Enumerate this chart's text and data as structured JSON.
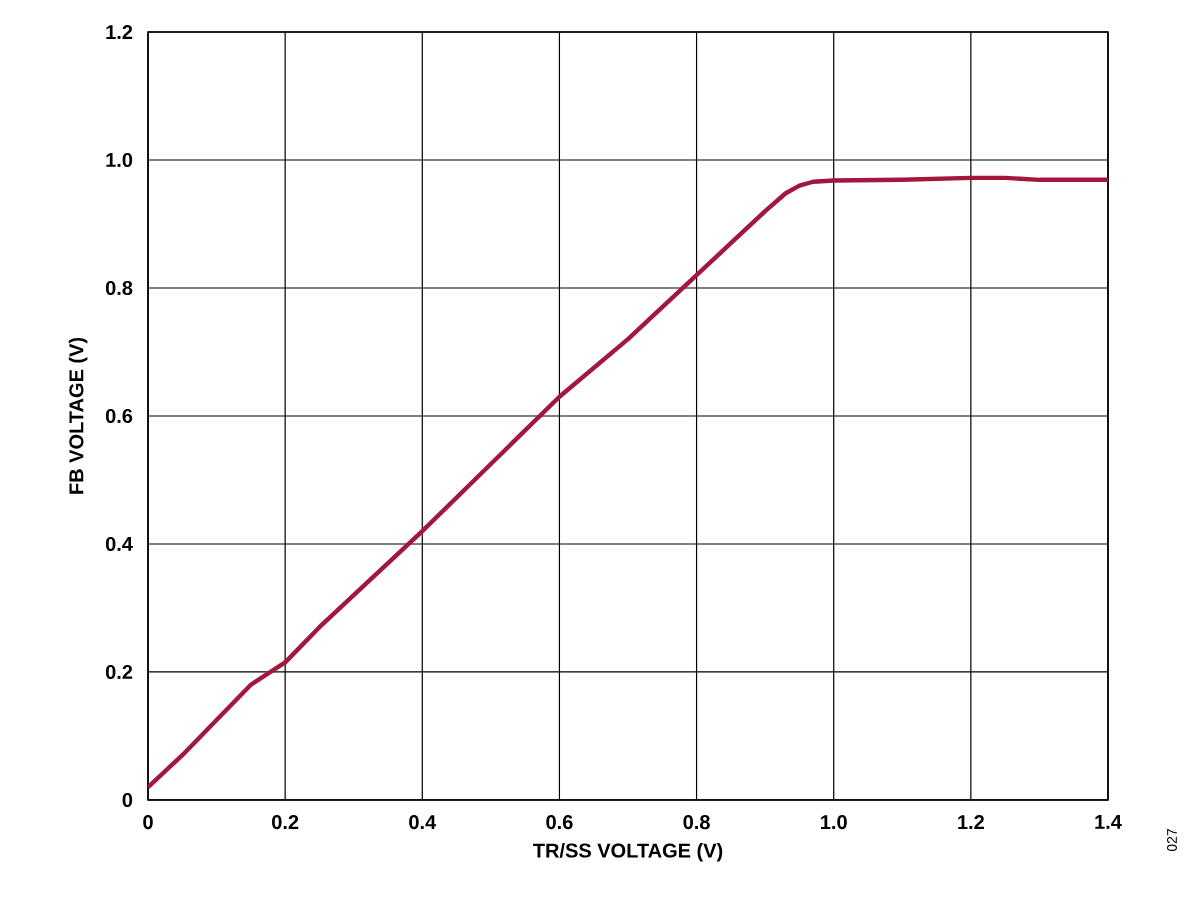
{
  "chart_data": {
    "type": "line",
    "xlabel": "TR/SS VOLTAGE (V)",
    "ylabel": "FB VOLTAGE (V)",
    "x": [
      0,
      0.05,
      0.1,
      0.15,
      0.2,
      0.25,
      0.3,
      0.4,
      0.5,
      0.6,
      0.7,
      0.8,
      0.85,
      0.9,
      0.93,
      0.95,
      0.97,
      1.0,
      1.1,
      1.2,
      1.25,
      1.3,
      1.4
    ],
    "series": [
      {
        "color": "#a3173f",
        "values": [
          0.02,
          0.07,
          0.125,
          0.18,
          0.215,
          0.27,
          0.32,
          0.42,
          0.525,
          0.63,
          0.72,
          0.82,
          0.87,
          0.92,
          0.948,
          0.96,
          0.966,
          0.968,
          0.969,
          0.972,
          0.972,
          0.969,
          0.969
        ]
      }
    ],
    "xlim": [
      0,
      1.4
    ],
    "ylim": [
      0,
      1.2
    ],
    "xticks": [
      0,
      0.2,
      0.4,
      0.6,
      0.8,
      {
        "value": 1,
        "label": "1.0"
      },
      1.2,
      1.4
    ],
    "yticks": [
      0,
      0.2,
      0.4,
      0.6,
      0.8,
      {
        "value": 1,
        "label": "1.0"
      },
      1.2
    ],
    "grid": true,
    "marker": "none",
    "line_style": "solid",
    "annotations": [
      "027"
    ]
  }
}
